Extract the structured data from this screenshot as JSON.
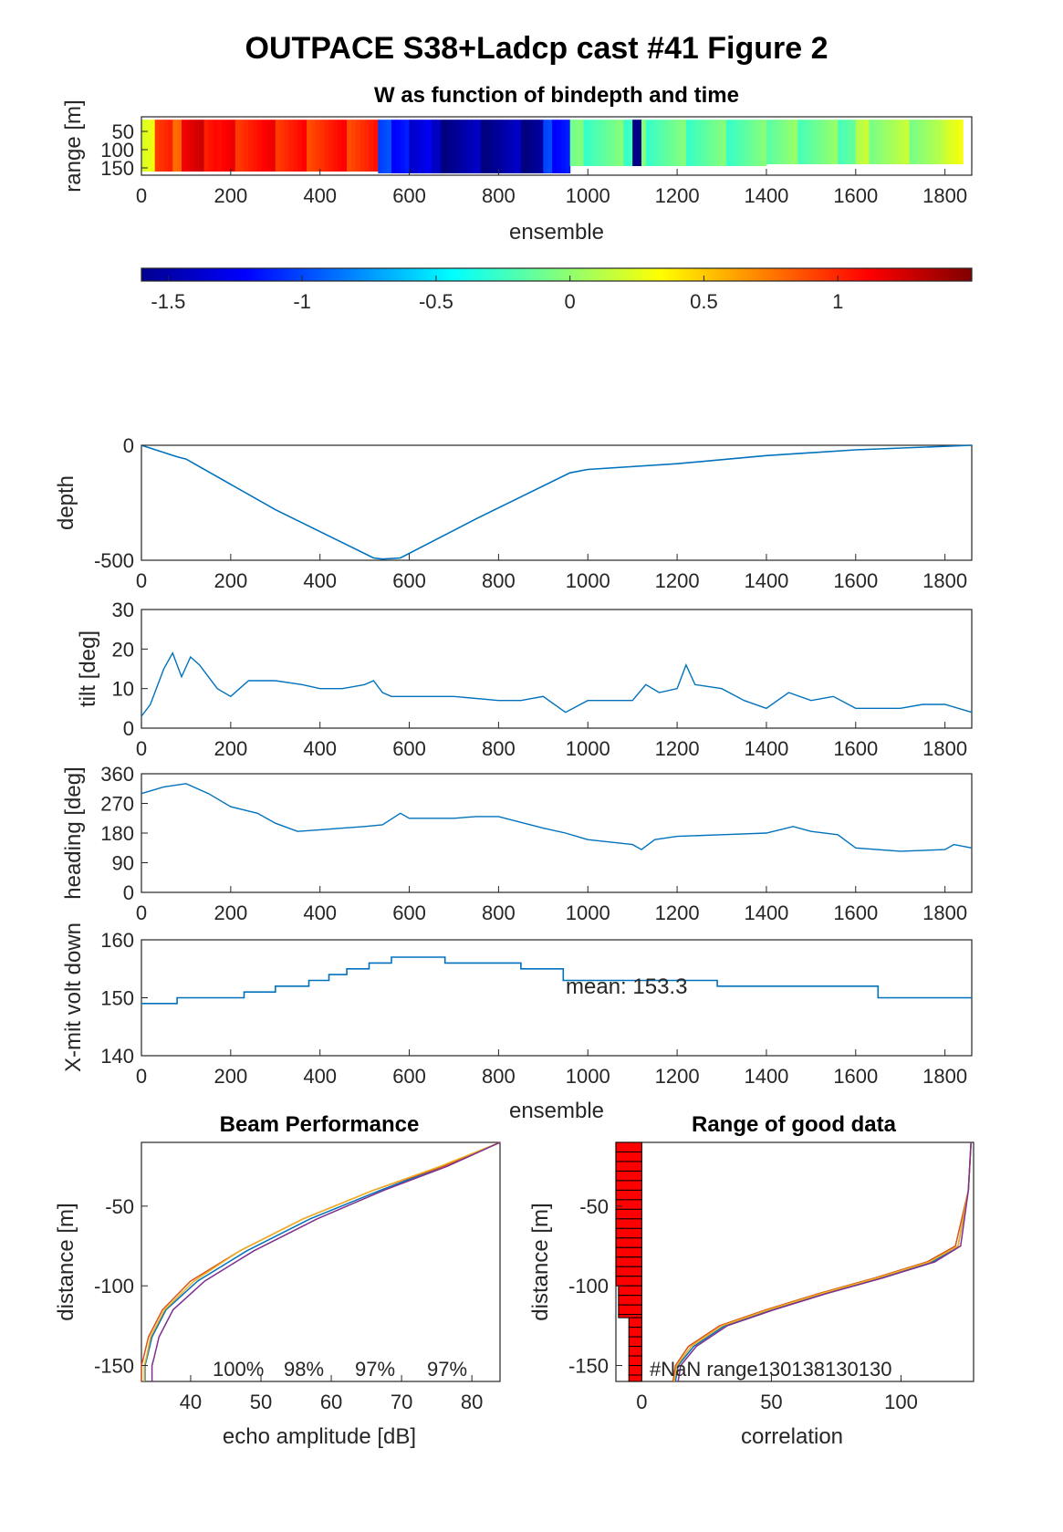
{
  "figure": {
    "title": "OUTPACE S38+Ladcp cast #41 Figure 2"
  },
  "colors": {
    "line": "#0072BD",
    "beam_lines": [
      "#0072BD",
      "#D95319",
      "#EDB120",
      "#7E2F8E"
    ],
    "hist_fill": "#FF0000",
    "axes": "#262626"
  },
  "chart_data": [
    {
      "id": "w_image",
      "type": "heatmap",
      "title": "W as function of bindepth and time",
      "xlabel": "ensemble",
      "ylabel": "range [m]",
      "xlim": [
        0,
        1860
      ],
      "ylim": [
        170,
        10
      ],
      "xticks": [
        0,
        200,
        400,
        600,
        800,
        1000,
        1200,
        1400,
        1600,
        1800
      ],
      "yticks": [
        50,
        100,
        150
      ],
      "segments": [
        {
          "x0": 0,
          "x1": 30,
          "w": 0.35
        },
        {
          "x0": 30,
          "x1": 90,
          "w": 0.9
        },
        {
          "x0": 90,
          "x1": 170,
          "w": 1.15
        },
        {
          "x0": 170,
          "x1": 360,
          "w": 1.05
        },
        {
          "x0": 360,
          "x1": 530,
          "w": 1.0
        },
        {
          "x0": 530,
          "x1": 560,
          "w": -0.9
        },
        {
          "x0": 560,
          "x1": 650,
          "w": -1.25
        },
        {
          "x0": 650,
          "x1": 900,
          "w": -1.5
        },
        {
          "x0": 900,
          "x1": 960,
          "w": -1.1
        },
        {
          "x0": 960,
          "x1": 1100,
          "w": -0.15
        },
        {
          "x0": 1100,
          "x1": 1120,
          "w": -1.6
        },
        {
          "x0": 1120,
          "x1": 1400,
          "w": -0.15
        },
        {
          "x0": 1400,
          "x1": 1600,
          "w": -0.1
        },
        {
          "x0": 1600,
          "x1": 1800,
          "w": 0.05
        },
        {
          "x0": 1800,
          "x1": 1840,
          "w": 0.3
        }
      ],
      "colorbar": {
        "ticks": [
          -1.5,
          -1,
          -0.5,
          0,
          0.5,
          1
        ],
        "clim": [
          -1.6,
          1.5
        ]
      }
    },
    {
      "id": "depth",
      "type": "line",
      "ylabel": "depth",
      "xlim": [
        0,
        1860
      ],
      "ylim": [
        -500,
        0
      ],
      "xticks": [
        0,
        200,
        400,
        600,
        800,
        1000,
        1200,
        1400,
        1600,
        1800
      ],
      "yticks": [
        -500,
        0
      ],
      "x": [
        0,
        80,
        100,
        300,
        520,
        540,
        580,
        750,
        960,
        1000,
        1200,
        1400,
        1600,
        1860
      ],
      "y": [
        0,
        -50,
        -60,
        -280,
        -490,
        -495,
        -490,
        -320,
        -120,
        -105,
        -80,
        -45,
        -20,
        0
      ]
    },
    {
      "id": "tilt",
      "type": "line",
      "ylabel": "tilt [deg]",
      "xlim": [
        0,
        1860
      ],
      "ylim": [
        0,
        30
      ],
      "xticks": [
        0,
        200,
        400,
        600,
        800,
        1000,
        1200,
        1400,
        1600,
        1800
      ],
      "yticks": [
        0,
        10,
        20,
        30
      ],
      "x": [
        0,
        20,
        50,
        70,
        90,
        110,
        130,
        150,
        170,
        200,
        240,
        300,
        360,
        400,
        450,
        500,
        520,
        540,
        560,
        600,
        700,
        800,
        850,
        900,
        950,
        1000,
        1050,
        1100,
        1130,
        1160,
        1200,
        1220,
        1240,
        1300,
        1350,
        1400,
        1450,
        1500,
        1550,
        1600,
        1650,
        1700,
        1750,
        1800,
        1860
      ],
      "y": [
        3,
        6,
        15,
        19,
        13,
        18,
        16,
        13,
        10,
        8,
        12,
        12,
        11,
        10,
        10,
        11,
        12,
        9,
        8,
        8,
        8,
        7,
        7,
        8,
        4,
        7,
        7,
        7,
        11,
        9,
        10,
        16,
        11,
        10,
        7,
        5,
        9,
        7,
        8,
        5,
        5,
        5,
        6,
        6,
        4
      ]
    },
    {
      "id": "heading",
      "type": "line",
      "ylabel": "heading [deg]",
      "xlim": [
        0,
        1860
      ],
      "ylim": [
        0,
        360
      ],
      "xticks": [
        0,
        200,
        400,
        600,
        800,
        1000,
        1200,
        1400,
        1600,
        1800
      ],
      "yticks": [
        0,
        90,
        180,
        270,
        360
      ],
      "x": [
        0,
        50,
        100,
        150,
        200,
        260,
        300,
        350,
        400,
        500,
        540,
        580,
        600,
        650,
        700,
        750,
        800,
        900,
        950,
        1000,
        1100,
        1120,
        1150,
        1200,
        1300,
        1400,
        1460,
        1500,
        1560,
        1600,
        1700,
        1800,
        1820,
        1860
      ],
      "y": [
        300,
        320,
        330,
        300,
        260,
        240,
        210,
        185,
        190,
        200,
        205,
        240,
        225,
        225,
        225,
        230,
        230,
        195,
        180,
        160,
        145,
        130,
        160,
        170,
        175,
        180,
        200,
        185,
        175,
        135,
        125,
        130,
        145,
        135
      ]
    },
    {
      "id": "xmit",
      "type": "line",
      "xlabel": "ensemble",
      "ylabel": "X-mit volt down",
      "xlim": [
        0,
        1860
      ],
      "ylim": [
        140,
        160
      ],
      "xticks": [
        0,
        200,
        400,
        600,
        800,
        1000,
        1200,
        1400,
        1600,
        1800
      ],
      "yticks": [
        140,
        150,
        160
      ],
      "annotation": "mean: 153.3",
      "steps": [
        {
          "x0": 0,
          "x1": 80,
          "y": 149
        },
        {
          "x0": 80,
          "x1": 230,
          "y": 150
        },
        {
          "x0": 230,
          "x1": 300,
          "y": 151
        },
        {
          "x0": 300,
          "x1": 375,
          "y": 152
        },
        {
          "x0": 375,
          "x1": 420,
          "y": 153
        },
        {
          "x0": 420,
          "x1": 460,
          "y": 154
        },
        {
          "x0": 460,
          "x1": 510,
          "y": 155
        },
        {
          "x0": 510,
          "x1": 560,
          "y": 156
        },
        {
          "x0": 560,
          "x1": 680,
          "y": 157
        },
        {
          "x0": 680,
          "x1": 850,
          "y": 156
        },
        {
          "x0": 850,
          "x1": 945,
          "y": 155
        },
        {
          "x0": 945,
          "x1": 1290,
          "y": 153
        },
        {
          "x0": 1290,
          "x1": 1650,
          "y": 152
        },
        {
          "x0": 1650,
          "x1": 1860,
          "y": 150
        }
      ]
    },
    {
      "id": "beam",
      "type": "line",
      "title": "Beam Performance",
      "xlabel": "echo amplitude [dB]",
      "ylabel": "distance [m]",
      "xlim": [
        33,
        84
      ],
      "ylim": [
        -160,
        -10
      ],
      "xticks": [
        40,
        50,
        60,
        70,
        80
      ],
      "yticks": [
        -150,
        -100,
        -50
      ],
      "annotations": [
        "100%",
        "98%",
        "97%",
        "97%"
      ],
      "series": [
        {
          "x": [
            84,
            76,
            67,
            57,
            48,
            41,
            36.5,
            34.5,
            33.8,
            33.5,
            33.5
          ],
          "y": [
            -10,
            -25,
            -40,
            -58,
            -78,
            -97,
            -115,
            -132,
            -145,
            -150,
            -160
          ]
        },
        {
          "x": [
            84,
            76,
            66,
            56,
            47,
            40,
            36,
            34,
            33.3,
            33,
            33
          ],
          "y": [
            -10,
            -25,
            -40,
            -58,
            -78,
            -97,
            -115,
            -132,
            -145,
            -150,
            -160
          ]
        },
        {
          "x": [
            84,
            75.5,
            66,
            56,
            47,
            40.5,
            36.3,
            34.3,
            33.7,
            33.4,
            33.4
          ],
          "y": [
            -10,
            -25,
            -40,
            -58,
            -78,
            -97,
            -115,
            -132,
            -145,
            -150,
            -160
          ]
        },
        {
          "x": [
            84,
            76.5,
            67.5,
            58,
            49,
            42,
            37.5,
            35.5,
            34.8,
            34.5,
            34.5
          ],
          "y": [
            -10,
            -25,
            -40,
            -58,
            -78,
            -97,
            -115,
            -132,
            -145,
            -150,
            -160
          ]
        }
      ]
    },
    {
      "id": "range_good",
      "type": "line",
      "title": "Range of good data",
      "xlabel": "correlation",
      "ylabel": "distance [m]",
      "xlim": [
        -10,
        128
      ],
      "ylim": [
        -160,
        -10
      ],
      "xticks": [
        0,
        50,
        100
      ],
      "yticks": [
        -150,
        -100,
        -50
      ],
      "annotation": "#NaN range130138130130",
      "series": [
        {
          "x": [
            127,
            126,
            122,
            112,
            92,
            70,
            50,
            32,
            20,
            14,
            13
          ],
          "y": [
            -10,
            -40,
            -75,
            -85,
            -95,
            -105,
            -115,
            -125,
            -138,
            -150,
            -160
          ]
        },
        {
          "x": [
            127,
            126,
            121,
            110,
            90,
            68,
            48,
            30,
            18,
            13,
            12
          ],
          "y": [
            -10,
            -40,
            -75,
            -85,
            -95,
            -105,
            -115,
            -125,
            -138,
            -150,
            -160
          ]
        },
        {
          "x": [
            127,
            126,
            122,
            111,
            91,
            69,
            49,
            31,
            19,
            13.5,
            12.5
          ],
          "y": [
            -10,
            -40,
            -75,
            -85,
            -95,
            -105,
            -115,
            -125,
            -138,
            -150,
            -160
          ]
        },
        {
          "x": [
            127,
            126,
            123,
            113,
            93,
            71,
            51,
            33,
            21,
            15,
            14
          ],
          "y": [
            -10,
            -40,
            -75,
            -85,
            -95,
            -105,
            -115,
            -125,
            -138,
            -150,
            -160
          ]
        }
      ],
      "nan_hist": [
        {
          "y0": -10,
          "y1": -100,
          "x": -10
        },
        {
          "y0": -100,
          "y1": -120,
          "x": -9
        },
        {
          "y0": -120,
          "y1": -160,
          "x": -5
        }
      ]
    }
  ]
}
